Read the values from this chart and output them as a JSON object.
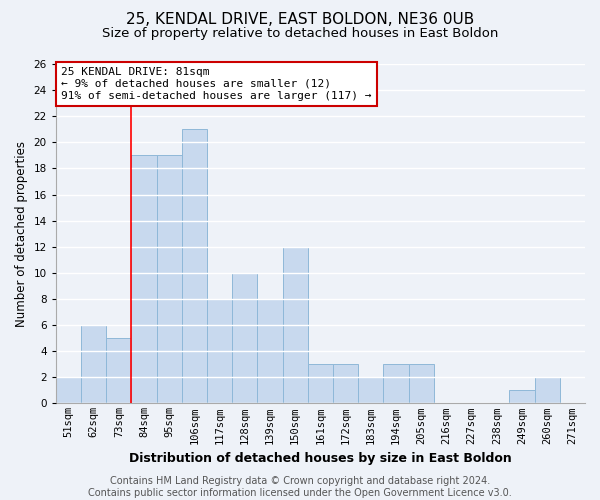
{
  "title": "25, KENDAL DRIVE, EAST BOLDON, NE36 0UB",
  "subtitle": "Size of property relative to detached houses in East Boldon",
  "xlabel": "Distribution of detached houses by size in East Boldon",
  "ylabel": "Number of detached properties",
  "categories": [
    "51sqm",
    "62sqm",
    "73sqm",
    "84sqm",
    "95sqm",
    "106sqm",
    "117sqm",
    "128sqm",
    "139sqm",
    "150sqm",
    "161sqm",
    "172sqm",
    "183sqm",
    "194sqm",
    "205sqm",
    "216sqm",
    "227sqm",
    "238sqm",
    "249sqm",
    "260sqm",
    "271sqm"
  ],
  "values": [
    2,
    6,
    5,
    19,
    19,
    21,
    8,
    10,
    8,
    12,
    3,
    3,
    2,
    3,
    3,
    0,
    0,
    0,
    1,
    2,
    0
  ],
  "bar_color": "#c8d9ee",
  "bar_edge_color": "#8fb8d8",
  "red_line_index": 3,
  "annotation_text": "25 KENDAL DRIVE: 81sqm\n← 9% of detached houses are smaller (12)\n91% of semi-detached houses are larger (117) →",
  "annotation_box_facecolor": "white",
  "annotation_box_edgecolor": "#cc0000",
  "ylim": [
    0,
    26
  ],
  "yticks": [
    0,
    2,
    4,
    6,
    8,
    10,
    12,
    14,
    16,
    18,
    20,
    22,
    24,
    26
  ],
  "footer_line1": "Contains HM Land Registry data © Crown copyright and database right 2024.",
  "footer_line2": "Contains public sector information licensed under the Open Government Licence v3.0.",
  "background_color": "#eef2f8",
  "grid_color": "#ffffff",
  "title_fontsize": 11,
  "subtitle_fontsize": 9.5,
  "ylabel_fontsize": 8.5,
  "xlabel_fontsize": 9,
  "tick_fontsize": 7.5,
  "annotation_fontsize": 8,
  "footer_fontsize": 7
}
